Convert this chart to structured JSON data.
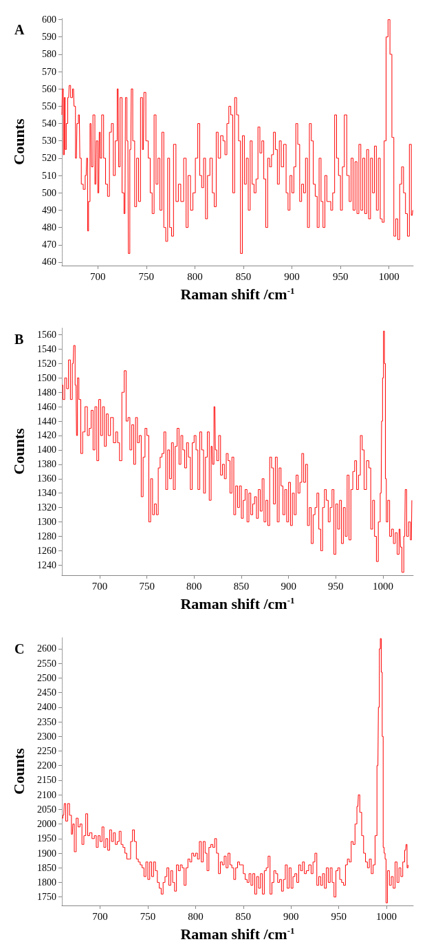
{
  "chart_data": [
    {
      "type": "step",
      "title": "A",
      "xlabel": "Raman shift /cm$^{-1}$",
      "ylabel": "Counts",
      "color": "#ff0000",
      "xlim": [
        663,
        1025
      ],
      "ylim": [
        458,
        601
      ],
      "xticks": [
        700,
        750,
        800,
        850,
        900,
        950,
        1000
      ],
      "yticks": [
        460,
        470,
        480,
        490,
        500,
        510,
        520,
        530,
        540,
        550,
        560,
        570,
        580,
        590,
        600
      ],
      "x": [
        663,
        664,
        665,
        666,
        667,
        668,
        670,
        671,
        673,
        675,
        676,
        678,
        679,
        681,
        682,
        684,
        686,
        688,
        689,
        690,
        691,
        693,
        694,
        696,
        698,
        699,
        701,
        702,
        703,
        705,
        707,
        709,
        711,
        713,
        715,
        717,
        719,
        721,
        722,
        724,
        726,
        728,
        729,
        731,
        732,
        734,
        735,
        737,
        739,
        741,
        743,
        745,
        747,
        748,
        751,
        753,
        755,
        757,
        759,
        761,
        763,
        765,
        767,
        769,
        771,
        773,
        775,
        777,
        779,
        782,
        784,
        787,
        790,
        792,
        794,
        797,
        799,
        802,
        804,
        806,
        808,
        810,
        812,
        814,
        817,
        819,
        821,
        823,
        825,
        828,
        830,
        832,
        834,
        836,
        838,
        840,
        842,
        844,
        846,
        848,
        850,
        852,
        854,
        856,
        858,
        860,
        862,
        864,
        866,
        868,
        870,
        872,
        874,
        876,
        878,
        880,
        882,
        884,
        886,
        888,
        890,
        893,
        895,
        897,
        899,
        901,
        903,
        905,
        907,
        909,
        911,
        913,
        915,
        917,
        919,
        921,
        923,
        925,
        927,
        929,
        931,
        933,
        935,
        937,
        939,
        941,
        943,
        945,
        947,
        949,
        951,
        953,
        955,
        958,
        960,
        962,
        964,
        966,
        968,
        970,
        972,
        974,
        976,
        978,
        980,
        982,
        984,
        986,
        988,
        990,
        992,
        994,
        996,
        998,
        1000,
        1002,
        1004,
        1006,
        1008,
        1010,
        1012,
        1014,
        1016,
        1018,
        1020,
        1022,
        1024,
        1025
      ],
      "values": [
        545,
        560,
        522,
        555,
        525,
        540,
        555,
        562,
        555,
        560,
        550,
        520,
        540,
        545,
        520,
        505,
        502,
        510,
        520,
        478,
        495,
        540,
        515,
        545,
        505,
        530,
        500,
        535,
        520,
        545,
        520,
        505,
        498,
        535,
        540,
        510,
        530,
        560,
        515,
        555,
        500,
        488,
        555,
        530,
        465,
        525,
        560,
        530,
        492,
        520,
        495,
        555,
        525,
        558,
        530,
        520,
        500,
        488,
        545,
        505,
        520,
        490,
        535,
        480,
        472,
        520,
        480,
        475,
        528,
        495,
        505,
        495,
        520,
        480,
        510,
        490,
        500,
        520,
        540,
        510,
        503,
        520,
        485,
        510,
        520,
        500,
        492,
        535,
        520,
        533,
        530,
        522,
        540,
        550,
        545,
        500,
        555,
        545,
        530,
        465,
        533,
        505,
        520,
        490,
        530,
        505,
        500,
        508,
        538,
        523,
        530,
        508,
        480,
        520,
        515,
        522,
        535,
        525,
        505,
        530,
        515,
        528,
        500,
        490,
        510,
        500,
        515,
        540,
        528,
        495,
        505,
        500,
        520,
        480,
        540,
        530,
        505,
        498,
        480,
        520,
        495,
        480,
        510,
        495,
        495,
        490,
        500,
        545,
        520,
        510,
        490,
        515,
        545,
        510,
        495,
        520,
        490,
        518,
        488,
        528,
        490,
        520,
        488,
        525,
        485,
        520,
        500,
        527,
        490,
        520,
        485,
        483,
        530,
        590,
        600,
        580,
        532,
        475,
        485,
        473,
        505,
        515,
        500,
        488,
        475,
        528,
        487,
        490
      ]
    },
    {
      "type": "step",
      "title": "B",
      "xlabel": "Raman shift /cm$^{-1}$",
      "ylabel": "Counts",
      "color": "#ff0000",
      "xlim": [
        660,
        1032
      ],
      "ylim": [
        1226,
        1570
      ],
      "xticks": [
        700,
        750,
        800,
        850,
        900,
        950,
        1000
      ],
      "yticks": [
        1240,
        1260,
        1280,
        1300,
        1320,
        1340,
        1360,
        1380,
        1400,
        1420,
        1440,
        1460,
        1480,
        1500,
        1520,
        1540,
        1560
      ],
      "x": [
        660,
        662,
        664,
        666,
        668,
        670,
        672,
        673,
        675,
        676,
        677,
        679,
        681,
        683,
        686,
        688,
        690,
        692,
        694,
        696,
        698,
        700,
        702,
        704,
        706,
        708,
        710,
        713,
        716,
        718,
        720,
        722,
        725,
        727,
        729,
        731,
        733,
        735,
        737,
        739,
        741,
        743,
        745,
        747,
        749,
        751,
        753,
        755,
        757,
        759,
        761,
        763,
        765,
        767,
        769,
        771,
        773,
        775,
        777,
        779,
        781,
        783,
        785,
        787,
        789,
        791,
        793,
        795,
        797,
        799,
        801,
        803,
        805,
        807,
        809,
        811,
        813,
        815,
        817,
        819,
        820,
        822,
        823,
        825,
        827,
        829,
        831,
        833,
        835,
        837,
        839,
        841,
        843,
        845,
        847,
        849,
        851,
        853,
        855,
        857,
        859,
        861,
        863,
        865,
        867,
        869,
        871,
        873,
        875,
        877,
        879,
        881,
        883,
        885,
        887,
        889,
        891,
        893,
        895,
        897,
        899,
        901,
        903,
        905,
        907,
        909,
        911,
        913,
        915,
        917,
        919,
        921,
        923,
        925,
        927,
        929,
        931,
        933,
        935,
        937,
        939,
        941,
        943,
        945,
        947,
        949,
        951,
        953,
        955,
        957,
        959,
        961,
        963,
        965,
        967,
        969,
        971,
        973,
        975,
        977,
        979,
        981,
        984,
        986,
        988,
        990,
        992,
        994,
        996,
        998,
        999,
        1000,
        1001,
        1002,
        1003,
        1004,
        1006,
        1008,
        1010,
        1012,
        1014,
        1016,
        1018,
        1019,
        1021,
        1023,
        1024,
        1026,
        1028,
        1030,
        1031
      ],
      "values": [
        1490,
        1470,
        1500,
        1485,
        1525,
        1470,
        1520,
        1545,
        1490,
        1420,
        1500,
        1470,
        1395,
        1425,
        1460,
        1420,
        1430,
        1455,
        1400,
        1460,
        1385,
        1470,
        1420,
        1460,
        1405,
        1450,
        1420,
        1445,
        1410,
        1425,
        1410,
        1385,
        1480,
        1510,
        1440,
        1445,
        1400,
        1435,
        1380,
        1445,
        1410,
        1420,
        1335,
        1390,
        1430,
        1420,
        1300,
        1360,
        1310,
        1325,
        1310,
        1375,
        1390,
        1395,
        1425,
        1345,
        1400,
        1360,
        1410,
        1345,
        1405,
        1430,
        1380,
        1420,
        1400,
        1375,
        1410,
        1390,
        1345,
        1410,
        1420,
        1400,
        1345,
        1425,
        1400,
        1340,
        1390,
        1425,
        1330,
        1405,
        1380,
        1460,
        1400,
        1385,
        1420,
        1365,
        1380,
        1360,
        1395,
        1385,
        1340,
        1390,
        1310,
        1350,
        1320,
        1350,
        1305,
        1330,
        1345,
        1300,
        1340,
        1310,
        1325,
        1335,
        1305,
        1345,
        1315,
        1360,
        1300,
        1330,
        1295,
        1390,
        1375,
        1325,
        1390,
        1300,
        1375,
        1350,
        1310,
        1345,
        1300,
        1355,
        1295,
        1340,
        1310,
        1365,
        1340,
        1355,
        1395,
        1355,
        1380,
        1295,
        1320,
        1270,
        1310,
        1320,
        1340,
        1290,
        1260,
        1320,
        1345,
        1330,
        1300,
        1320,
        1345,
        1255,
        1325,
        1290,
        1330,
        1270,
        1320,
        1280,
        1365,
        1275,
        1345,
        1370,
        1385,
        1345,
        1365,
        1420,
        1400,
        1345,
        1385,
        1375,
        1290,
        1330,
        1280,
        1245,
        1300,
        1340,
        1440,
        1500,
        1565,
        1520,
        1360,
        1300,
        1330,
        1280,
        1290,
        1270,
        1285,
        1255,
        1290,
        1265,
        1230,
        1280,
        1345,
        1280,
        1300,
        1275,
        1330
      ]
    },
    {
      "type": "step",
      "title": "C",
      "xlabel": "Raman shift /cm$^{-1}$",
      "ylabel": "Counts",
      "color": "#ff0000",
      "xlim": [
        660,
        1028
      ],
      "ylim": [
        1721,
        2640
      ],
      "xticks": [
        700,
        750,
        800,
        850,
        900,
        950,
        1000
      ],
      "yticks": [
        1750,
        1800,
        1850,
        1900,
        1950,
        2000,
        2050,
        2100,
        2150,
        2200,
        2250,
        2300,
        2350,
        2400,
        2450,
        2500,
        2550,
        2600
      ],
      "x": [
        660,
        662,
        663,
        665,
        667,
        669,
        671,
        672,
        674,
        676,
        678,
        680,
        682,
        684,
        686,
        688,
        690,
        693,
        695,
        697,
        699,
        701,
        703,
        705,
        707,
        709,
        711,
        713,
        715,
        717,
        719,
        721,
        723,
        725,
        727,
        729,
        731,
        733,
        735,
        737,
        739,
        741,
        743,
        745,
        747,
        749,
        751,
        753,
        755,
        757,
        759,
        761,
        763,
        765,
        767,
        769,
        771,
        773,
        775,
        777,
        779,
        781,
        783,
        785,
        787,
        789,
        791,
        793,
        795,
        797,
        799,
        801,
        803,
        805,
        807,
        809,
        811,
        813,
        815,
        817,
        819,
        821,
        823,
        825,
        827,
        829,
        831,
        833,
        835,
        837,
        839,
        841,
        843,
        845,
        847,
        849,
        851,
        853,
        855,
        857,
        859,
        861,
        863,
        865,
        867,
        869,
        871,
        873,
        875,
        877,
        879,
        881,
        883,
        885,
        887,
        889,
        891,
        893,
        895,
        897,
        899,
        901,
        903,
        905,
        907,
        909,
        911,
        913,
        915,
        917,
        920,
        922,
        924,
        926,
        928,
        930,
        932,
        934,
        936,
        938,
        940,
        942,
        944,
        946,
        948,
        950,
        952,
        954,
        956,
        958,
        960,
        962,
        964,
        966,
        968,
        970,
        971,
        973,
        975,
        977,
        979,
        981,
        983,
        985,
        987,
        989,
        991,
        992,
        993,
        994,
        995,
        996,
        997,
        998,
        999,
        1000,
        1002,
        1004,
        1006,
        1008,
        1010,
        1012,
        1014,
        1016,
        1018,
        1020,
        1021,
        1022,
        1023
      ],
      "values": [
        2020,
        2030,
        2070,
        2010,
        2070,
        2030,
        1965,
        2000,
        1905,
        2020,
        1990,
        2000,
        1930,
        1960,
        2035,
        1960,
        1970,
        1950,
        1960,
        1920,
        1960,
        1940,
        1990,
        1920,
        1950,
        1910,
        1980,
        1940,
        1970,
        1930,
        1940,
        1975,
        1930,
        1920,
        1900,
        1880,
        1880,
        1940,
        1980,
        1940,
        1880,
        1870,
        1860,
        1850,
        1820,
        1870,
        1810,
        1870,
        1820,
        1870,
        1840,
        1800,
        1780,
        1760,
        1800,
        1820,
        1850,
        1790,
        1840,
        1800,
        1770,
        1860,
        1840,
        1860,
        1850,
        1790,
        1850,
        1880,
        1870,
        1900,
        1890,
        1900,
        1880,
        1940,
        1870,
        1940,
        1900,
        1840,
        1920,
        1930,
        1920,
        1950,
        1900,
        1830,
        1870,
        1860,
        1890,
        1850,
        1900,
        1860,
        1850,
        1810,
        1850,
        1870,
        1860,
        1860,
        1830,
        1810,
        1800,
        1830,
        1790,
        1830,
        1760,
        1820,
        1780,
        1830,
        1760,
        1840,
        1850,
        1890,
        1760,
        1800,
        1840,
        1830,
        1800,
        1810,
        1770,
        1810,
        1860,
        1780,
        1850,
        1780,
        1820,
        1830,
        1800,
        1860,
        1840,
        1870,
        1830,
        1840,
        1860,
        1830,
        1870,
        1900,
        1790,
        1820,
        1790,
        1830,
        1780,
        1850,
        1800,
        1850,
        1800,
        1750,
        1840,
        1850,
        1810,
        1800,
        1790,
        1860,
        1880,
        1870,
        1940,
        1930,
        2000,
        2060,
        2100,
        2040,
        1960,
        1900,
        1870,
        1850,
        1880,
        1830,
        1860,
        1960,
        2200,
        2400,
        2600,
        2635,
        2520,
        2300,
        1920,
        1900,
        1880,
        1730,
        1840,
        1790,
        1820,
        1780,
        1870,
        1800,
        1850,
        1820,
        1870,
        1910,
        1930,
        1850,
        1860
      ]
    }
  ]
}
